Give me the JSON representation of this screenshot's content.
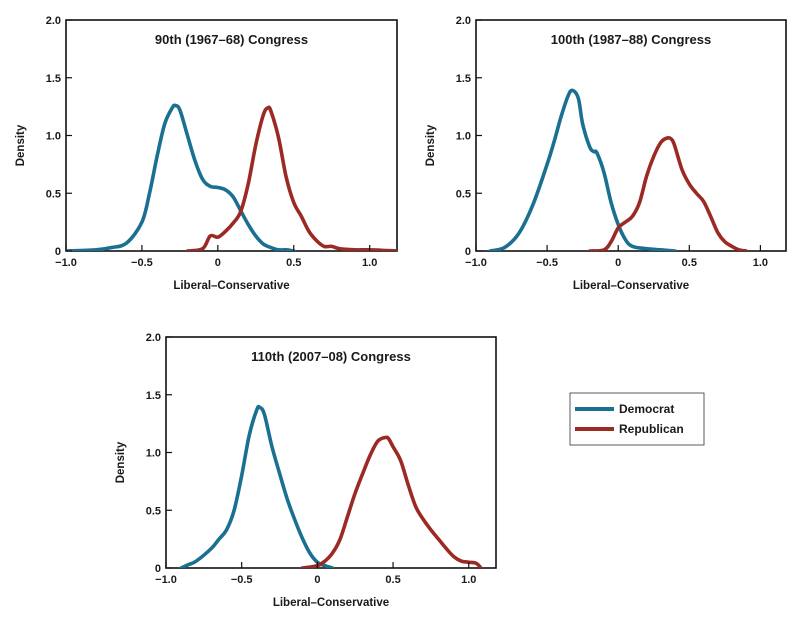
{
  "colors": {
    "Democrat": "#1a7090",
    "Republican": "#9c2a24",
    "axis": "#111111",
    "background": "#ffffff"
  },
  "legend": {
    "placement": "right of bottom panel",
    "entries": [
      "Democrat",
      "Republican"
    ]
  },
  "chart_data": [
    {
      "type": "line",
      "title": "90th (1967–68) Congress",
      "xlabel": "Liberal–Conservative",
      "ylabel": "Density",
      "xlim": [
        -1.0,
        1.18
      ],
      "ylim": [
        0,
        2.0
      ],
      "xticks": [
        -1.0,
        -0.5,
        0,
        0.5,
        1.0
      ],
      "xtick_labels": [
        "−1.0",
        "−0.5",
        "0",
        "0.5",
        "1.0"
      ],
      "yticks": [
        0,
        0.5,
        1.0,
        1.5,
        2.0
      ],
      "ytick_labels": [
        "0",
        "0.5",
        "1.0",
        "1.5",
        "2.0"
      ],
      "grid": false,
      "series": [
        {
          "name": "Democrat",
          "x": [
            -1.0,
            -0.8,
            -0.7,
            -0.6,
            -0.5,
            -0.45,
            -0.4,
            -0.35,
            -0.3,
            -0.28,
            -0.25,
            -0.2,
            -0.15,
            -0.1,
            -0.05,
            0,
            0.05,
            0.1,
            0.15,
            0.2,
            0.25,
            0.3,
            0.35,
            0.4,
            0.45,
            0.5
          ],
          "y": [
            0.0,
            0.01,
            0.03,
            0.07,
            0.25,
            0.5,
            0.82,
            1.1,
            1.24,
            1.26,
            1.22,
            1.0,
            0.78,
            0.62,
            0.56,
            0.55,
            0.53,
            0.47,
            0.35,
            0.23,
            0.13,
            0.06,
            0.03,
            0.01,
            0.01,
            0.0
          ]
        },
        {
          "name": "Republican",
          "x": [
            -0.2,
            -0.1,
            -0.05,
            0,
            0.05,
            0.1,
            0.15,
            0.2,
            0.25,
            0.3,
            0.33,
            0.35,
            0.4,
            0.45,
            0.5,
            0.55,
            0.6,
            0.65,
            0.7,
            0.75,
            0.8,
            0.9,
            1.0,
            1.18
          ],
          "y": [
            0.0,
            0.02,
            0.13,
            0.12,
            0.17,
            0.24,
            0.34,
            0.58,
            0.92,
            1.18,
            1.24,
            1.21,
            0.98,
            0.64,
            0.42,
            0.3,
            0.17,
            0.09,
            0.04,
            0.04,
            0.02,
            0.01,
            0.01,
            0.0
          ]
        }
      ]
    },
    {
      "type": "line",
      "title": "100th (1987–88) Congress",
      "xlabel": "Liberal–Conservative",
      "ylabel": "Density",
      "xlim": [
        -1.0,
        1.18
      ],
      "ylim": [
        0,
        2.0
      ],
      "xticks": [
        -1.0,
        -0.5,
        0,
        0.5,
        1.0
      ],
      "xtick_labels": [
        "−1.0",
        "−0.5",
        "0",
        "0.5",
        "1.0"
      ],
      "yticks": [
        0,
        0.5,
        1.0,
        1.5,
        2.0
      ],
      "ytick_labels": [
        "0",
        "0.5",
        "1.0",
        "1.5",
        "2.0"
      ],
      "grid": false,
      "series": [
        {
          "name": "Democrat",
          "x": [
            -0.9,
            -0.8,
            -0.7,
            -0.6,
            -0.5,
            -0.45,
            -0.4,
            -0.35,
            -0.32,
            -0.28,
            -0.25,
            -0.2,
            -0.17,
            -0.15,
            -0.1,
            -0.05,
            0,
            0.05,
            0.1,
            0.2,
            0.3,
            0.4
          ],
          "y": [
            0.0,
            0.03,
            0.15,
            0.4,
            0.75,
            0.95,
            1.17,
            1.35,
            1.39,
            1.32,
            1.1,
            0.9,
            0.86,
            0.85,
            0.68,
            0.42,
            0.23,
            0.1,
            0.04,
            0.02,
            0.01,
            0.0
          ]
        },
        {
          "name": "Republican",
          "x": [
            -0.2,
            -0.1,
            -0.05,
            0,
            0.05,
            0.1,
            0.15,
            0.2,
            0.25,
            0.3,
            0.35,
            0.38,
            0.4,
            0.45,
            0.5,
            0.55,
            0.6,
            0.65,
            0.7,
            0.75,
            0.8,
            0.85,
            0.9
          ],
          "y": [
            0.0,
            0.01,
            0.08,
            0.2,
            0.25,
            0.3,
            0.42,
            0.65,
            0.82,
            0.94,
            0.98,
            0.96,
            0.9,
            0.7,
            0.58,
            0.5,
            0.43,
            0.3,
            0.16,
            0.08,
            0.04,
            0.01,
            0.0
          ]
        }
      ]
    },
    {
      "type": "line",
      "title": "110th (2007–08) Congress",
      "xlabel": "Liberal–Conservative",
      "ylabel": "Density",
      "xlim": [
        -1.0,
        1.18
      ],
      "ylim": [
        0,
        2.0
      ],
      "xticks": [
        -1.0,
        -0.5,
        0,
        0.5,
        1.0
      ],
      "xtick_labels": [
        "−1.0",
        "−0.5",
        "0",
        "0.5",
        "1.0"
      ],
      "yticks": [
        0,
        0.5,
        1.0,
        1.5,
        2.0
      ],
      "ytick_labels": [
        "0",
        "0.5",
        "1.0",
        "1.5",
        "2.0"
      ],
      "grid": false,
      "series": [
        {
          "name": "Democrat",
          "x": [
            -0.9,
            -0.85,
            -0.8,
            -0.7,
            -0.65,
            -0.6,
            -0.55,
            -0.5,
            -0.45,
            -0.4,
            -0.38,
            -0.35,
            -0.3,
            -0.25,
            -0.2,
            -0.15,
            -0.1,
            -0.05,
            0,
            0.05,
            0.1
          ],
          "y": [
            0.0,
            0.03,
            0.06,
            0.17,
            0.25,
            0.33,
            0.5,
            0.8,
            1.15,
            1.37,
            1.39,
            1.33,
            1.05,
            0.82,
            0.6,
            0.42,
            0.26,
            0.13,
            0.05,
            0.02,
            0.0
          ]
        },
        {
          "name": "Republican",
          "x": [
            -0.1,
            0,
            0.05,
            0.1,
            0.15,
            0.2,
            0.25,
            0.3,
            0.35,
            0.4,
            0.45,
            0.47,
            0.5,
            0.55,
            0.6,
            0.65,
            0.7,
            0.75,
            0.8,
            0.85,
            0.9,
            0.95,
            1.0,
            1.05,
            1.08
          ],
          "y": [
            0.0,
            0.02,
            0.06,
            0.13,
            0.25,
            0.45,
            0.65,
            0.82,
            0.98,
            1.1,
            1.13,
            1.12,
            1.05,
            0.93,
            0.72,
            0.53,
            0.42,
            0.33,
            0.25,
            0.17,
            0.1,
            0.06,
            0.05,
            0.04,
            0.0
          ]
        }
      ]
    }
  ]
}
